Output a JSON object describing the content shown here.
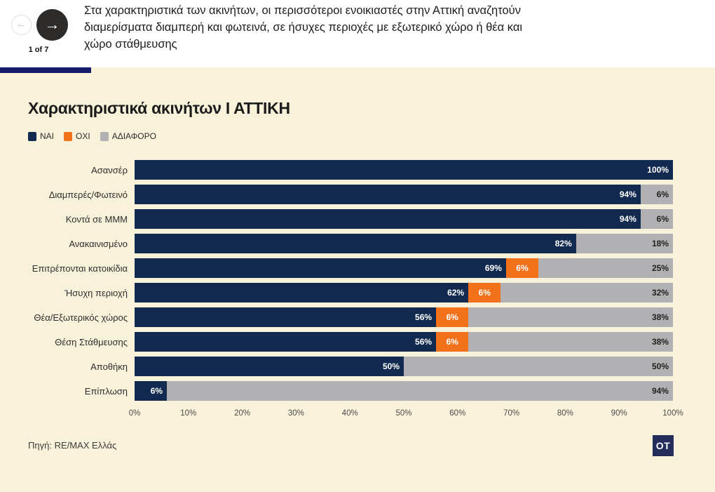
{
  "header": {
    "pagination_label": "1 of 7",
    "description": "Στα χαρακτηριστικά των ακινήτων, οι περισσότεροι ενοικιαστές στην Αττική αναζητούν διαμερίσματα διαμπερή και φωτεινά, σε ήσυχες περιοχές με εξωτερικό χώρο ή θέα και χώρο στάθμευσης",
    "prev_icon": "left-arrow",
    "next_icon": "right-arrow"
  },
  "chart": {
    "title": "Χαρακτηριστικά ακινήτων Ι ΑΤΤΙΚΗ",
    "source": "Πηγή: RE/MAX Ελλάς",
    "logo_text": "OT",
    "colors": {
      "background": "#f8f2da",
      "nai": "#122a4f",
      "oxi": "#f4711c",
      "adiaforo": "#b1b1b3",
      "progress_bar": "#171c6c",
      "logo_bg": "#232d5c"
    }
  },
  "chart_data": {
    "type": "bar",
    "orientation": "horizontal",
    "stacked": true,
    "unit": "%",
    "xlim": [
      0,
      100
    ],
    "grid": false,
    "legend_position": "top-left",
    "x_ticks": [
      "0%",
      "10%",
      "20%",
      "30%",
      "40%",
      "50%",
      "60%",
      "70%",
      "80%",
      "90%",
      "100%"
    ],
    "categories": [
      "Ασανσέρ",
      "Διαμπερές/Φωτεινό",
      "Κοντά σε ΜΜΜ",
      "Ανακαινισμένο",
      "Επιτρέπονται κατοικίδια",
      "Ήσυχη περιοχή",
      "Θέα/Εξωτερικός χώρος",
      "Θέση Στάθμευσης",
      "Αποθήκη",
      "Επίπλωση"
    ],
    "series": [
      {
        "name": "ΝΑΙ",
        "key": "nai",
        "color": "#122a4f",
        "values": [
          100,
          94,
          94,
          82,
          69,
          62,
          56,
          56,
          50,
          6
        ]
      },
      {
        "name": "ΟΧΙ",
        "key": "oxi",
        "color": "#f4711c",
        "values": [
          0,
          0,
          0,
          0,
          6,
          6,
          6,
          6,
          0,
          0
        ]
      },
      {
        "name": "ΑΔΙΑΦΟΡΟ",
        "key": "adiaforo",
        "color": "#b1b1b3",
        "values": [
          0,
          6,
          6,
          18,
          25,
          32,
          38,
          38,
          50,
          94
        ]
      }
    ]
  }
}
